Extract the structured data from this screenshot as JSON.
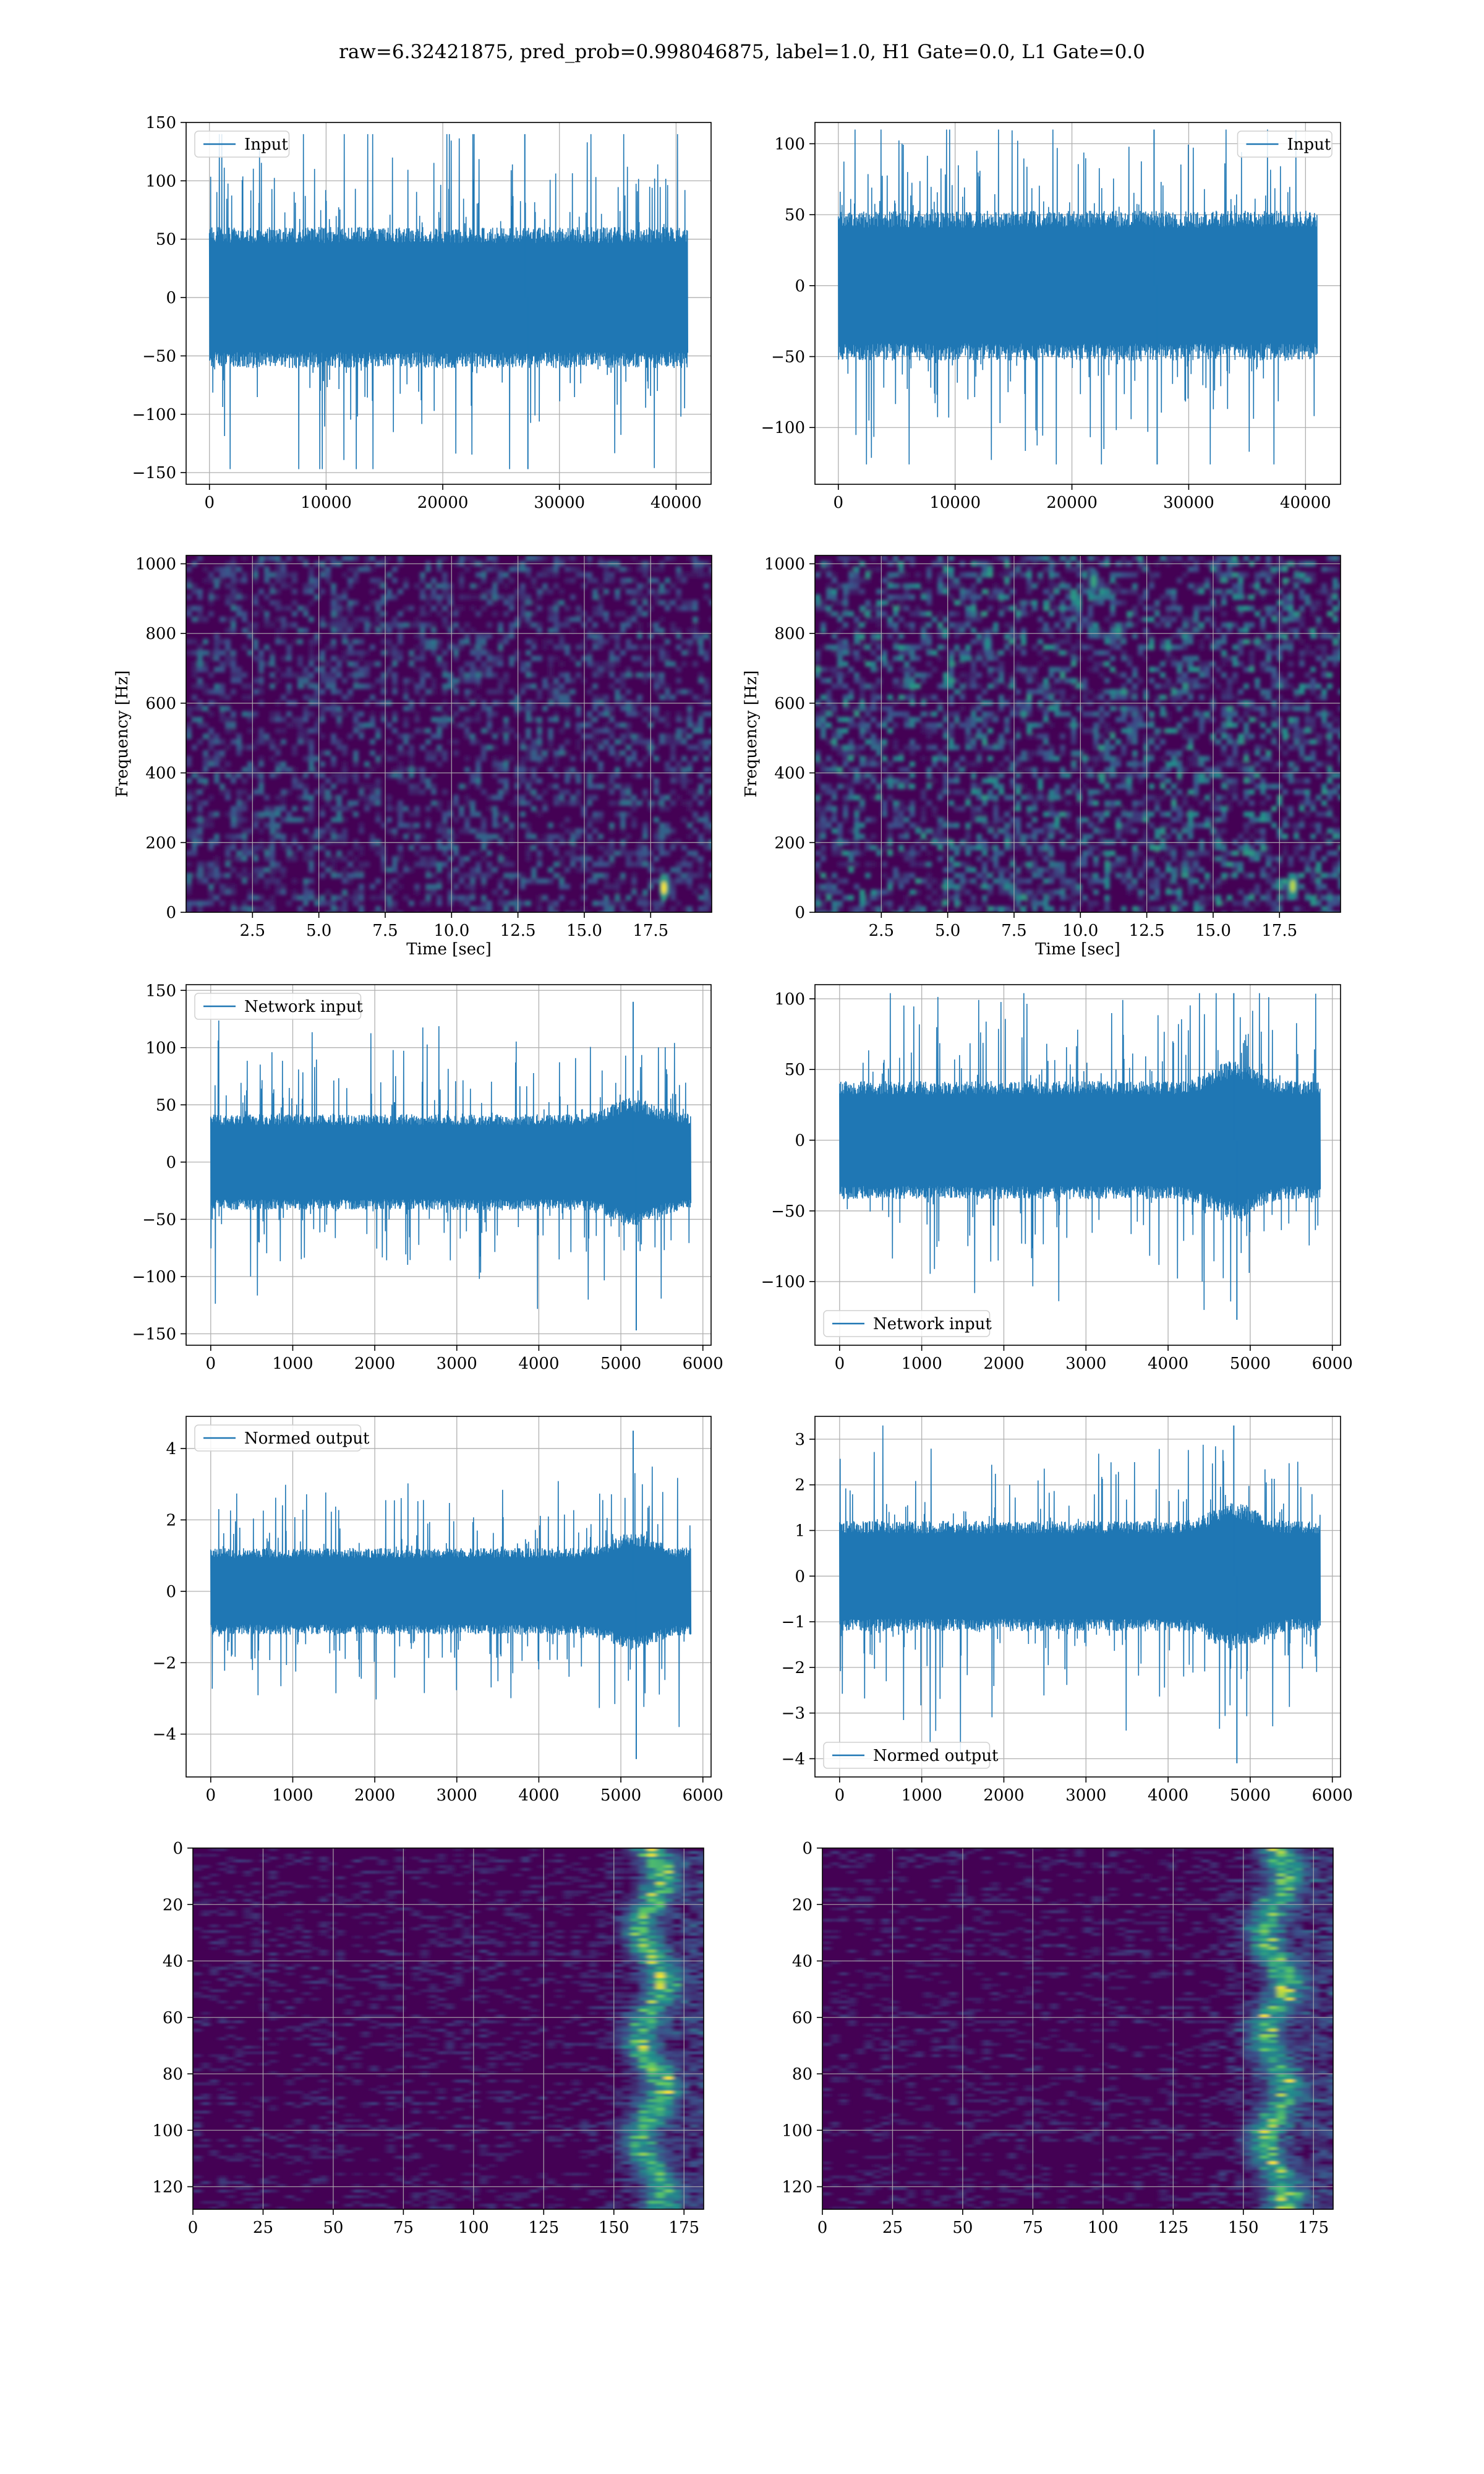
{
  "suptitle": "raw=6.32421875, pred_prob=0.998046875, label=1.0, H1 Gate=0.0, L1 Gate=0.0",
  "colors": {
    "line": "#1f77b4",
    "heat_low": "#440154",
    "heat_mid": "#21908d",
    "heat_high": "#fde725",
    "grid": "#b0b0b0"
  },
  "chart_data": [
    {
      "id": "p1",
      "type": "line",
      "legend": [
        "Input"
      ],
      "legend_loc": "upper left",
      "grid": true,
      "xlim": [
        -2000,
        43000
      ],
      "ylim": [
        -160,
        150
      ],
      "xticks": [
        0,
        10000,
        20000,
        30000,
        40000
      ],
      "yticks": [
        -150,
        -100,
        -50,
        0,
        50,
        100,
        150
      ],
      "xlabel": "",
      "ylabel": "",
      "series": [
        {
          "x_range": [
            0,
            40960
          ],
          "n_points": 40960,
          "typical_band": [
            -55,
            55
          ],
          "min": -147,
          "max": 140
        }
      ]
    },
    {
      "id": "p2",
      "type": "line",
      "legend": [
        "Input"
      ],
      "legend_loc": "upper right",
      "grid": true,
      "xlim": [
        -2000,
        43000
      ],
      "ylim": [
        -140,
        115
      ],
      "xticks": [
        0,
        10000,
        20000,
        30000,
        40000
      ],
      "yticks": [
        -100,
        -50,
        0,
        50,
        100
      ],
      "xlabel": "",
      "ylabel": "",
      "series": [
        {
          "x_range": [
            0,
            40960
          ],
          "n_points": 40960,
          "typical_band": [
            -48,
            48
          ],
          "min": -126,
          "max": 110
        }
      ]
    },
    {
      "id": "p3",
      "type": "heatmap",
      "grid": true,
      "xlim": [
        0,
        19.8
      ],
      "ylim": [
        0,
        1024
      ],
      "xticks": [
        2.5,
        5.0,
        7.5,
        10.0,
        12.5,
        15.0,
        17.5
      ],
      "yticks": [
        0,
        200,
        400,
        600,
        800,
        1000
      ],
      "xlabel": "Time [sec]",
      "ylabel": "Frequency [Hz]",
      "colormap": "viridis",
      "hotspots": [
        {
          "t": 18.0,
          "f": 70,
          "intensity": 1.0
        }
      ]
    },
    {
      "id": "p4",
      "type": "heatmap",
      "grid": true,
      "xlim": [
        0,
        19.8
      ],
      "ylim": [
        0,
        1024
      ],
      "xticks": [
        2.5,
        5.0,
        7.5,
        10.0,
        12.5,
        15.0,
        17.5
      ],
      "yticks": [
        0,
        200,
        400,
        600,
        800,
        1000
      ],
      "xlabel": "Time [sec]",
      "ylabel": "Frequency [Hz]",
      "colormap": "viridis",
      "hotspots": [
        {
          "t": 18.0,
          "f": 75,
          "intensity": 0.9
        },
        {
          "t": 10.5,
          "f": 950,
          "intensity": 0.6
        },
        {
          "t": 6.5,
          "f": 770,
          "intensity": 0.5
        }
      ]
    },
    {
      "id": "p5",
      "type": "line",
      "legend": [
        "Network input"
      ],
      "legend_loc": "upper left",
      "grid": true,
      "xlim": [
        -300,
        6100
      ],
      "ylim": [
        -160,
        155
      ],
      "xticks": [
        0,
        1000,
        2000,
        3000,
        4000,
        5000,
        6000
      ],
      "yticks": [
        -150,
        -100,
        -50,
        0,
        50,
        100,
        150
      ],
      "xlabel": "",
      "ylabel": "",
      "series": [
        {
          "x_range": [
            0,
            5850
          ],
          "n_points": 5850,
          "typical_band": [
            -38,
            38
          ],
          "min": -147,
          "max": 140,
          "burst_near": 5150
        }
      ]
    },
    {
      "id": "p6",
      "type": "line",
      "legend": [
        "Network input"
      ],
      "legend_loc": "lower left",
      "grid": true,
      "xlim": [
        -300,
        6100
      ],
      "ylim": [
        -145,
        110
      ],
      "xticks": [
        0,
        1000,
        2000,
        3000,
        4000,
        5000,
        6000
      ],
      "yticks": [
        -100,
        -50,
        0,
        50,
        100
      ],
      "xlabel": "",
      "ylabel": "",
      "series": [
        {
          "x_range": [
            0,
            5850
          ],
          "n_points": 5850,
          "typical_band": [
            -38,
            38
          ],
          "min": -127,
          "max": 104,
          "burst_near": 4800
        }
      ]
    },
    {
      "id": "p7",
      "type": "line",
      "legend": [
        "Normed output"
      ],
      "legend_loc": "upper left",
      "grid": true,
      "xlim": [
        -300,
        6100
      ],
      "ylim": [
        -5.2,
        4.9
      ],
      "xticks": [
        0,
        1000,
        2000,
        3000,
        4000,
        5000,
        6000
      ],
      "yticks": [
        -4,
        -2,
        0,
        2,
        4
      ],
      "xlabel": "",
      "ylabel": "",
      "series": [
        {
          "x_range": [
            0,
            5850
          ],
          "n_points": 5850,
          "typical_band": [
            -1.1,
            1.1
          ],
          "min": -4.7,
          "max": 4.5,
          "burst_near": 5150
        }
      ]
    },
    {
      "id": "p8",
      "type": "line",
      "legend": [
        "Normed output"
      ],
      "legend_loc": "lower left",
      "grid": true,
      "xlim": [
        -300,
        6100
      ],
      "ylim": [
        -4.4,
        3.5
      ],
      "xticks": [
        0,
        1000,
        2000,
        3000,
        4000,
        5000,
        6000
      ],
      "yticks": [
        -4,
        -3,
        -2,
        -1,
        0,
        1,
        2,
        3
      ],
      "xlabel": "",
      "ylabel": "",
      "series": [
        {
          "x_range": [
            0,
            5850
          ],
          "n_points": 5850,
          "typical_band": [
            -1.1,
            1.1
          ],
          "min": -4.1,
          "max": 3.3,
          "burst_near": 4800
        }
      ]
    },
    {
      "id": "p9",
      "type": "heatmap",
      "grid": true,
      "xlim": [
        0,
        182
      ],
      "ylim": [
        128,
        0
      ],
      "xticks": [
        0,
        25,
        50,
        75,
        100,
        125,
        150,
        175
      ],
      "yticks": [
        0,
        20,
        40,
        60,
        80,
        100,
        120
      ],
      "xlabel": "",
      "ylabel": "",
      "colormap": "viridis",
      "active_columns": [
        148,
        182
      ],
      "peak_column": 162
    },
    {
      "id": "p10",
      "type": "heatmap",
      "grid": true,
      "xlim": [
        0,
        182
      ],
      "ylim": [
        128,
        0
      ],
      "xticks": [
        0,
        25,
        50,
        75,
        100,
        125,
        150,
        175
      ],
      "yticks": [
        0,
        20,
        40,
        60,
        80,
        100,
        120
      ],
      "xlabel": "",
      "ylabel": "",
      "colormap": "viridis",
      "active_columns": [
        140,
        182
      ],
      "peak_column": 160
    }
  ]
}
